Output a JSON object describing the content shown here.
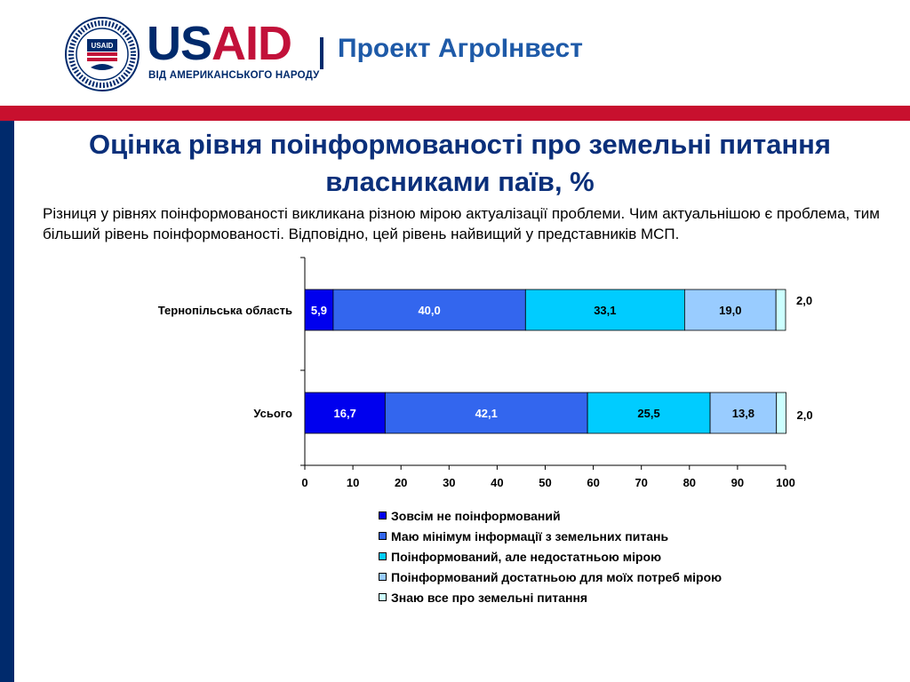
{
  "header": {
    "brand_us": "US",
    "brand_aid": "AID",
    "tagline": "ВІД АМЕРИКАНСЬКОГО НАРОДУ",
    "project": "Проект АгроІнвест",
    "logo_icon": "usaid-seal-icon"
  },
  "slide": {
    "title": "Оцінка рівня поінформованості про земельні питання власниками паїв, %",
    "subtitle": "Різниця у рівнях поінформованості викликана різною мірою актуалізації проблеми. Чим актуальнішою є проблема, тим більший рівень поінформованості. Відповідно, цей рівень найвищий у представників МСП."
  },
  "chart_data": {
    "type": "bar",
    "orientation": "horizontal",
    "stacked": true,
    "categories": [
      "Тернопільська область",
      "Усього"
    ],
    "series": [
      {
        "name": "Зовсім не поінформований",
        "color": "#0000ee",
        "values": [
          5.9,
          16.7
        ],
        "labels": [
          "5,9",
          "16,7"
        ]
      },
      {
        "name": "Маю мінімум інформації з земельних питань",
        "color": "#3366ee",
        "values": [
          40.0,
          42.1
        ],
        "labels": [
          "40,0",
          "42,1"
        ]
      },
      {
        "name": "Поінформований, але недостатньою мірою",
        "color": "#00ccff",
        "values": [
          33.1,
          25.5
        ],
        "labels": [
          "33,1",
          "25,5"
        ]
      },
      {
        "name": "Поінформований достатньою для моїх потреб мірою",
        "color": "#99ccff",
        "values": [
          19.0,
          13.8
        ],
        "labels": [
          "19,0",
          "13,8"
        ]
      },
      {
        "name": "Знаю все про земельні питання",
        "color": "#ccffff",
        "values": [
          2.0,
          2.0
        ],
        "labels": [
          "2,0",
          "2,0"
        ]
      }
    ],
    "xlim": [
      0,
      100
    ],
    "xticks": [
      0,
      10,
      20,
      30,
      40,
      50,
      60,
      70,
      80,
      90,
      100
    ],
    "xtick_labels": [
      "0",
      "10",
      "20",
      "30",
      "40",
      "50",
      "60",
      "70",
      "80",
      "90",
      "100"
    ],
    "grid": false,
    "legend_position": "bottom"
  }
}
